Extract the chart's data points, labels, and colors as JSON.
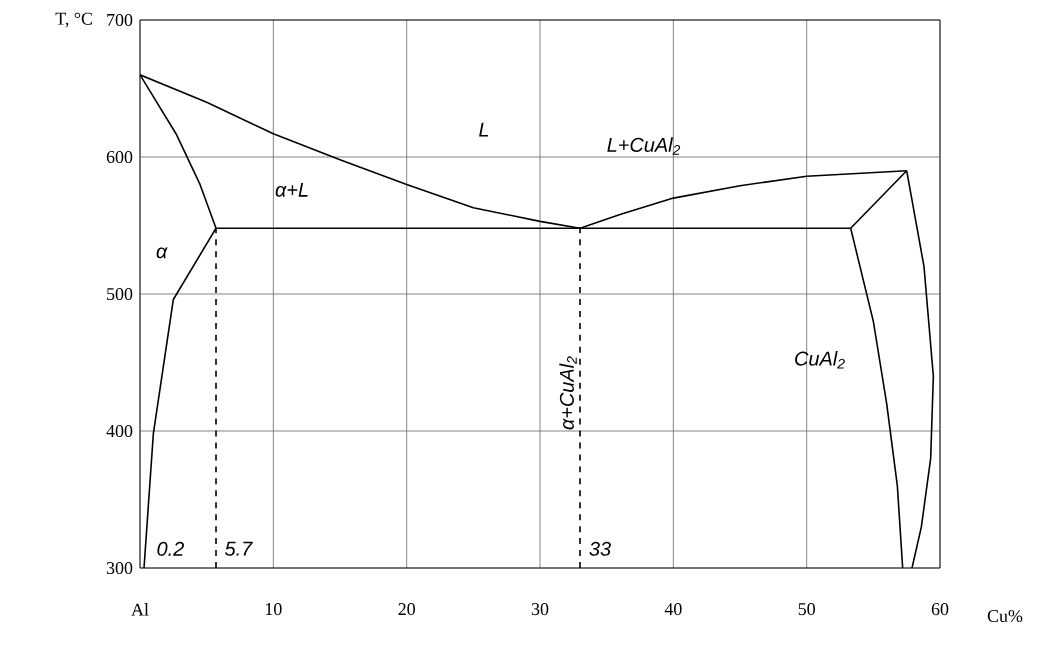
{
  "chart_data": {
    "type": "line",
    "xlabel": "Cu%",
    "ylabel": "T, °C",
    "xlim": [
      0,
      60
    ],
    "ylim": [
      300,
      700
    ],
    "xticks": [
      {
        "value": 0,
        "label": "Al"
      },
      10,
      20,
      30,
      40,
      50,
      60
    ],
    "yticks": [
      300,
      400,
      500,
      600,
      700
    ],
    "grid": true,
    "series": [
      {
        "color": "#000000",
        "x": [
          0,
          5,
          10,
          15,
          20,
          25,
          30,
          33
        ],
        "values": [
          660,
          640,
          617,
          598,
          580,
          563,
          553,
          548
        ]
      },
      {
        "color": "#000000",
        "x": [
          0,
          2.7,
          4.5,
          5.7
        ],
        "values": [
          660,
          617,
          580,
          548
        ]
      },
      {
        "color": "#000000",
        "x": [
          5.7,
          2.5,
          1.0,
          0.3
        ],
        "values": [
          548,
          496,
          398,
          300
        ]
      },
      {
        "color": "#000000",
        "x": [
          5.7,
          53.3
        ],
        "values": [
          548,
          548
        ]
      },
      {
        "color": "#000000",
        "x": [
          33,
          36,
          40,
          45,
          50,
          57.5
        ],
        "values": [
          548,
          558,
          570,
          579,
          586,
          590
        ]
      },
      {
        "color": "#000000",
        "x": [
          53.3,
          57.5
        ],
        "values": [
          548,
          590
        ]
      },
      {
        "color": "#000000",
        "x": [
          53.3,
          55,
          56,
          56.8,
          57.2
        ],
        "values": [
          548,
          480,
          420,
          360,
          300
        ]
      },
      {
        "color": "#000000",
        "x": [
          57.5,
          58.8,
          59.5,
          59.3,
          58.6,
          57.9
        ],
        "values": [
          590,
          520,
          440,
          380,
          330,
          300
        ]
      },
      {
        "color": "#000000",
        "line_style": "dashed",
        "x": [
          5.7,
          5.7
        ],
        "values": [
          300,
          548
        ]
      },
      {
        "color": "#000000",
        "line_style": "dashed",
        "x": [
          33,
          33
        ],
        "values": [
          300,
          548
        ]
      }
    ],
    "annotations": [
      "L",
      "α+L",
      "α",
      "L+CuAl$_{2}$",
      "CuAl$_{2}$",
      "α+CuAl$_{2}$",
      "0.2",
      "5.7",
      "33"
    ]
  }
}
